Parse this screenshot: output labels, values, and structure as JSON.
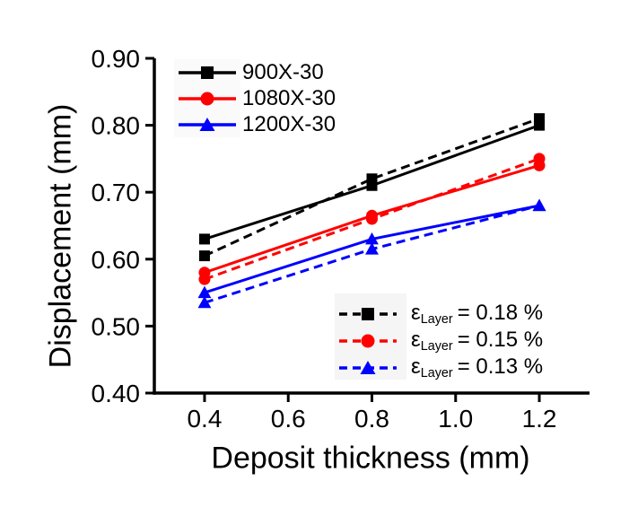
{
  "chart_data": {
    "type": "line",
    "xlabel": "Deposit thickness (mm)",
    "ylabel": "Displacement (mm)",
    "x": [
      0.4,
      0.8,
      1.2
    ],
    "xlim": [
      0.28,
      1.32
    ],
    "ylim": [
      0.4,
      0.9
    ],
    "grid": false,
    "background": "#ffffff",
    "xticks": {
      "values": [
        0.4,
        0.6,
        0.8,
        1.0,
        1.2
      ],
      "labels": [
        "0.4",
        "0.6",
        "0.8",
        "1.0",
        "1.2"
      ]
    },
    "yticks": {
      "values": [
        0.9,
        0.8,
        0.7,
        0.6,
        0.5,
        0.4
      ],
      "labels": [
        "0.90",
        "0.80",
        "0.70",
        "0.60",
        "0.50",
        "0.40"
      ]
    },
    "legend_solid_position": "top-left",
    "legend_dashed_position": "bottom-right",
    "series": [
      {
        "name": "900X-30",
        "color": "#000000",
        "marker": "square",
        "style": "solid",
        "values": [
          0.63,
          0.71,
          0.8
        ]
      },
      {
        "name": "1080X-30",
        "color": "#ff0000",
        "marker": "circle",
        "style": "solid",
        "values": [
          0.58,
          0.665,
          0.74
        ]
      },
      {
        "name": "1200X-30",
        "color": "#0000ff",
        "marker": "triangle",
        "style": "solid",
        "values": [
          0.55,
          0.63,
          0.68
        ]
      }
    ],
    "dashed_series": [
      {
        "label_eps": "ε",
        "label_sub": "Layer",
        "label_rest": "= 0.18 %",
        "color": "#000000",
        "marker": "square",
        "style": "dashed",
        "values": [
          0.605,
          0.72,
          0.81
        ]
      },
      {
        "label_eps": "ε",
        "label_sub": "Layer",
        "label_rest": "= 0.15 %",
        "color": "#ff0000",
        "marker": "circle",
        "style": "dashed",
        "values": [
          0.57,
          0.66,
          0.75
        ]
      },
      {
        "label_eps": "ε",
        "label_sub": "Layer",
        "label_rest": "= 0.13 %",
        "color": "#0000ff",
        "marker": "triangle",
        "style": "dashed",
        "values": [
          0.535,
          0.615,
          0.68
        ]
      }
    ]
  }
}
